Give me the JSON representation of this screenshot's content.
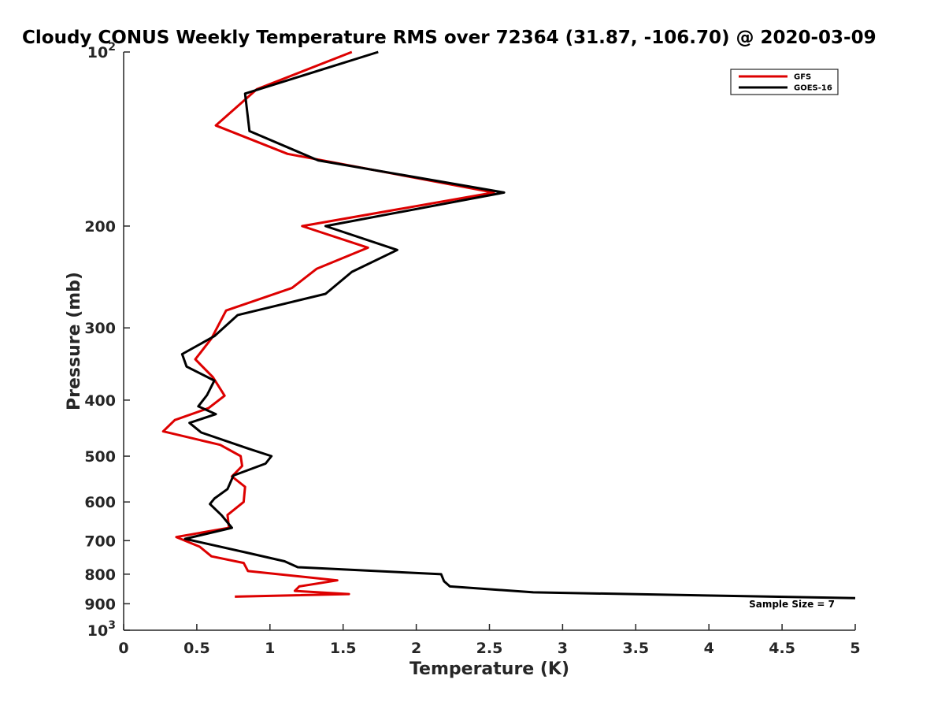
{
  "chart_data": {
    "type": "line",
    "title": "Cloudy CONUS Weekly Temperature RMS over 72364 (31.87, -106.70) @ 2020-03-09",
    "xlabel": "Temperature (K)",
    "ylabel": "Pressure (mb)",
    "xlim": [
      0,
      5
    ],
    "ylim": [
      100,
      1000
    ],
    "yscale": "log",
    "y_reversed": true,
    "x_ticks": [
      "0",
      "0.5",
      "1",
      "1.5",
      "2",
      "2.5",
      "3",
      "3.5",
      "4",
      "4.5",
      "5"
    ],
    "y_ticks": [
      {
        "value": 100,
        "base": "10",
        "exp": "2"
      },
      {
        "value": 200,
        "label": "200"
      },
      {
        "value": 300,
        "label": "300"
      },
      {
        "value": 400,
        "label": "400"
      },
      {
        "value": 500,
        "label": "500"
      },
      {
        "value": 600,
        "label": "600"
      },
      {
        "value": 700,
        "label": "700"
      },
      {
        "value": 800,
        "label": "800"
      },
      {
        "value": 900,
        "label": "900"
      },
      {
        "value": 1000,
        "base": "10",
        "exp": "3"
      }
    ],
    "legend_position": "top-right",
    "annotation": "Sample Size = 7",
    "series": [
      {
        "name": "GFS",
        "color": "#dd0000",
        "points": [
          [
            1.56,
            100
          ],
          [
            0.91,
            116
          ],
          [
            0.63,
            134
          ],
          [
            1.12,
            150
          ],
          [
            2.53,
            175
          ],
          [
            1.22,
            200
          ],
          [
            1.67,
            218
          ],
          [
            1.32,
            237
          ],
          [
            1.15,
            256
          ],
          [
            0.7,
            280
          ],
          [
            0.6,
            313
          ],
          [
            0.49,
            340
          ],
          [
            0.61,
            365
          ],
          [
            0.69,
            393
          ],
          [
            0.58,
            413
          ],
          [
            0.35,
            433
          ],
          [
            0.27,
            453
          ],
          [
            0.66,
            478
          ],
          [
            0.8,
            500
          ],
          [
            0.81,
            520
          ],
          [
            0.74,
            542
          ],
          [
            0.83,
            565
          ],
          [
            0.82,
            600
          ],
          [
            0.71,
            632
          ],
          [
            0.72,
            665
          ],
          [
            0.36,
            690
          ],
          [
            0.52,
            717
          ],
          [
            0.6,
            745
          ],
          [
            0.82,
            765
          ],
          [
            0.85,
            790
          ],
          [
            1.46,
            820
          ],
          [
            1.2,
            840
          ],
          [
            1.17,
            855
          ],
          [
            1.54,
            866
          ],
          [
            0.76,
            875
          ]
        ]
      },
      {
        "name": "GOES-16",
        "color": "#000000",
        "points": [
          [
            1.74,
            100
          ],
          [
            0.83,
            118
          ],
          [
            0.86,
            137
          ],
          [
            1.33,
            154
          ],
          [
            2.6,
            175
          ],
          [
            1.38,
            200
          ],
          [
            1.87,
            220
          ],
          [
            1.56,
            240
          ],
          [
            1.38,
            262
          ],
          [
            0.78,
            285
          ],
          [
            0.62,
            310
          ],
          [
            0.4,
            333
          ],
          [
            0.43,
            350
          ],
          [
            0.62,
            370
          ],
          [
            0.57,
            392
          ],
          [
            0.51,
            410
          ],
          [
            0.63,
            423
          ],
          [
            0.45,
            438
          ],
          [
            0.53,
            455
          ],
          [
            0.85,
            485
          ],
          [
            1.01,
            500
          ],
          [
            0.97,
            515
          ],
          [
            0.75,
            540
          ],
          [
            0.71,
            570
          ],
          [
            0.62,
            592
          ],
          [
            0.59,
            605
          ],
          [
            0.67,
            633
          ],
          [
            0.74,
            665
          ],
          [
            0.42,
            695
          ],
          [
            0.85,
            735
          ],
          [
            1.1,
            760
          ],
          [
            1.19,
            778
          ],
          [
            2.17,
            800
          ],
          [
            2.19,
            823
          ],
          [
            2.23,
            840
          ],
          [
            2.8,
            860
          ],
          [
            5.0,
            880
          ]
        ]
      }
    ]
  }
}
